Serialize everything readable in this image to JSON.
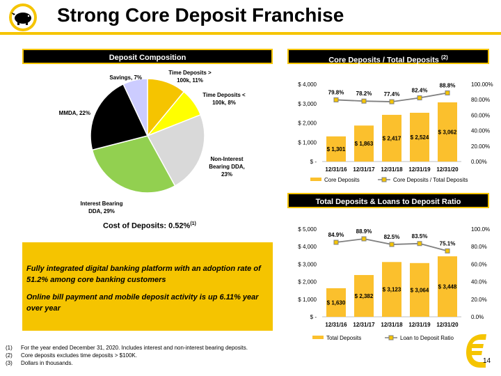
{
  "title": "Strong Core Deposit Franchise",
  "colors": {
    "accent": "#f5c400",
    "dark": "#000000"
  },
  "logo_icon": "piggy-bank-icon",
  "deposit_composition": {
    "header": "Deposit Composition",
    "cost_label": "Cost of Deposits: 0.52%",
    "cost_sup": "(1)"
  },
  "core_ratio": {
    "header": "Core Deposits / Total Deposits",
    "header_sup": "(2)"
  },
  "loans_ratio": {
    "header": "Total Deposits & Loans to Deposit Ratio"
  },
  "callout": {
    "line1": "Fully integrated digital banking platform with an adoption rate of 51.2% among core banking customers",
    "line2": "Online bill payment and mobile deposit activity is up 6.11% year over year"
  },
  "footnotes": [
    {
      "num": "(1)",
      "text": "For the year ended December 31, 2020.  Includes interest and non-interest bearing deposits."
    },
    {
      "num": "(2)",
      "text": "Core deposits excludes time deposits > $100K."
    },
    {
      "num": "(3)",
      "text": "Dollars in thousands."
    }
  ],
  "page_number": "14",
  "chart_data": [
    {
      "type": "pie",
      "slices": [
        {
          "label": [
            "Time Deposits >",
            "100k, 11%"
          ],
          "value": 11,
          "color": "#f5c400"
        },
        {
          "label": [
            "Time Deposits <",
            "100k, 8%"
          ],
          "value": 8,
          "color": "#ffff00"
        },
        {
          "label": [
            "Non-Interest",
            "Bearing DDA,",
            "23%"
          ],
          "value": 23,
          "color": "#d9d9d9"
        },
        {
          "label": [
            "Interest Bearing",
            "DDA, 29%"
          ],
          "value": 29,
          "color": "#92d050"
        },
        {
          "label": [
            "MMDA, 22%"
          ],
          "value": 22,
          "color": "#000000"
        },
        {
          "label": [
            "Savings, 7%"
          ],
          "value": 7,
          "color": "#ccccff"
        }
      ]
    },
    {
      "type": "bar",
      "categories": [
        "12/31/16",
        "12/31/17",
        "12/31/18",
        "12/31/19",
        "12/31/20"
      ],
      "series": [
        {
          "name": "Core Deposits",
          "values": [
            1301,
            1863,
            2417,
            2524,
            3062
          ],
          "labels": [
            "$ 1,301",
            "$ 1,863",
            "$ 2,417",
            "$ 2,524",
            "$ 3,062"
          ],
          "color": "#fbc02d"
        },
        {
          "name": "Core Deposits / Total Deposits",
          "type": "line",
          "values": [
            79.8,
            78.2,
            77.4,
            82.4,
            88.8
          ],
          "labels": [
            "79.8%",
            "78.2%",
            "77.4%",
            "82.4%",
            "88.8%"
          ],
          "color": "#808080"
        }
      ],
      "y_ticks": [
        "$ 4,000",
        "$ 3,000",
        "$ 2,000",
        "$ 1,000",
        "$ -"
      ],
      "y2_ticks": [
        "100.00%",
        "80.00%",
        "60.00%",
        "40.00%",
        "20.00%",
        "0.00%"
      ],
      "ylim": [
        0,
        4000
      ],
      "y2lim": [
        0,
        100
      ]
    },
    {
      "type": "bar",
      "categories": [
        "12/31/16",
        "12/31/17",
        "12/31/18",
        "12/31/19",
        "12/31/20"
      ],
      "series": [
        {
          "name": "Total Deposits",
          "values": [
            1630,
            2382,
            3123,
            3064,
            3448
          ],
          "labels": [
            "$ 1,630",
            "$ 2,382",
            "$ 3,123",
            "$ 3,064",
            "$ 3,448"
          ],
          "color": "#fbc02d"
        },
        {
          "name": "Loan to Deposit Ratio",
          "type": "line",
          "values": [
            84.9,
            88.9,
            82.5,
            83.5,
            75.1
          ],
          "labels": [
            "84.9%",
            "88.9%",
            "82.5%",
            "83.5%",
            "75.1%"
          ],
          "color": "#808080"
        }
      ],
      "y_ticks": [
        "$ 5,000",
        "$ 4,000",
        "$ 3,000",
        "$ 2,000",
        "$ 1,000",
        "$ -"
      ],
      "y2_ticks": [
        "100.0%",
        "80.0%",
        "60.0%",
        "40.0%",
        "20.0%",
        "0.0%"
      ],
      "ylim": [
        0,
        5000
      ],
      "y2lim": [
        0,
        100
      ]
    }
  ]
}
